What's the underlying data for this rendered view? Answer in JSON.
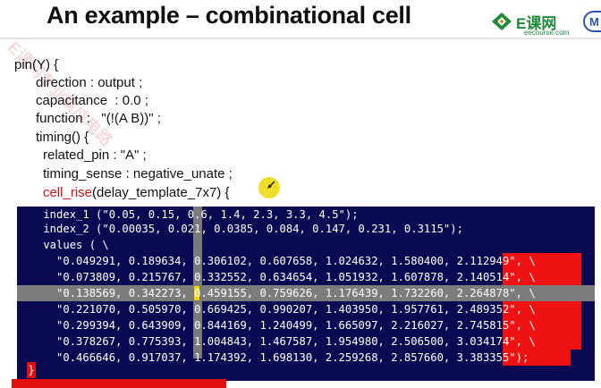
{
  "slide": {
    "title": "An example – combinational cell"
  },
  "logo": {
    "brand": "E课网",
    "site": "eecourse.com",
    "badge_letter": "M"
  },
  "watermark": {
    "text": "E课网专业集成电路"
  },
  "code": {
    "lines": [
      "pin(Y) {",
      "direction : output ;",
      "capacitance  : 0.0 ;",
      "function :   \"(!(A B))\" ;",
      "timing() {",
      "related_pin : \"A\" ;",
      "timing_sense : negative_unate ;"
    ],
    "cell_rise_keyword": "cell_rise",
    "cell_rise_rest": "(delay_template_7x7) {"
  },
  "terminal": {
    "lines": [
      "    index_1 (\"0.05, 0.15, 0.6, 1.4, 2.3, 3.3, 4.5\");",
      "    index_2 (\"0.00035, 0.021, 0.0385, 0.084, 0.147, 0.231, 0.3115\");",
      "    values ( \\",
      "      \"0.049291, 0.189634, 0.306102, 0.607658, 1.024632, 1.580400, 2.112949\", \\",
      "      \"0.073809, 0.215767, 0.332552, 0.634654, 1.051932, 1.607878, 2.140514\", \\",
      "      \"0.138569, 0.342273, 0.459155, 0.759626, 1.176439, 1.732260, 2.264878\", \\",
      "      \"0.221070, 0.505970, 0.669425, 0.990207, 1.403950, 1.957761, 2.489352\", \\",
      "      \"0.299394, 0.643909, 0.844169, 1.240499, 1.665097, 2.216027, 2.745815\", \\",
      "      \"0.378267, 0.775393, 1.004843, 1.467587, 1.954980, 2.506500, 3.034174\", \\",
      "      \"0.466646, 0.917037, 1.174392, 1.698130, 2.259268, 2.857660, 3.383355\");"
    ],
    "closing_brace": "}"
  },
  "colors": {
    "terminal_bg": "#0a0a52",
    "highlight_red": "#ee1212",
    "keyword_red": "#c81414",
    "logo_green": "#1f8a3a"
  }
}
